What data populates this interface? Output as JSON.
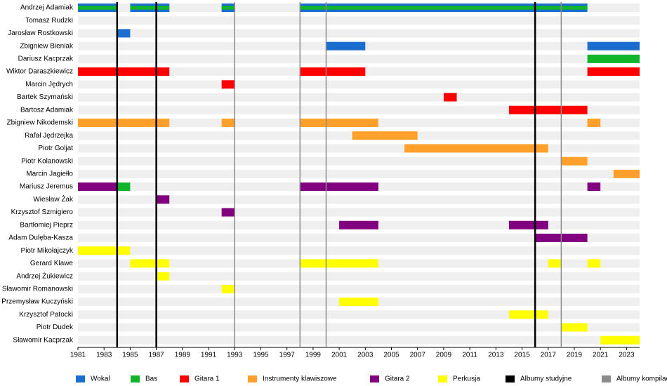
{
  "chart_data": {
    "type": "timeline",
    "categories": [
      "Andrzej Adamiak",
      "Tomasz Rudzki",
      "Jarosław Rostkowski",
      "Zbigniew Bieniak",
      "Dariusz Kacprzak",
      "Wiktor Daraszkiewicz",
      "Marcin Jędrych",
      "Bartek Szymański",
      "Bartosz Adamiak",
      "Zbigniew Nikodemski",
      "Rafał Jędrzejka",
      "Piotr Goljat",
      "Piotr Kolanowski",
      "Marcin Jagiełło",
      "Mariusz Jeremus",
      "Wiesław Żak",
      "Krzysztof Szmigiero",
      "Bartłomiej Pieprz",
      "Adam Dulęba-Kasza",
      "Piotr Mikołajczyk",
      "Gerard Klawe",
      "Andrzej Żukiewicz",
      "Sławomir Romanowski",
      "Przemysław Kuczyński",
      "Krzysztof Patocki",
      "Piotr Dudek",
      "Sławomir Kacprzak"
    ],
    "xlim": [
      1981,
      2024
    ],
    "xticks": [
      1981,
      1983,
      1985,
      1987,
      1989,
      1991,
      1993,
      1995,
      1997,
      1999,
      2001,
      2003,
      2005,
      2007,
      2009,
      2011,
      2013,
      2015,
      2017,
      2019,
      2021,
      2023
    ],
    "series": [
      {
        "name": "Wokal",
        "color": "#1a6ecf",
        "rows": [
          "Andrzej Adamiak",
          "Andrzej Adamiak",
          "Andrzej Adamiak",
          "Andrzej Adamiak",
          "Jarosław Rostkowski",
          "Zbigniew Bieniak",
          "Zbigniew Bieniak"
        ],
        "start": [
          1981,
          1985,
          1992,
          1998,
          1984,
          2000,
          2020
        ],
        "end": [
          1984,
          1988,
          1993,
          2020,
          1985,
          2003,
          2024
        ]
      },
      {
        "name": "Bas",
        "color": "#11b52a",
        "rows": [
          "Andrzej Adamiak",
          "Andrzej Adamiak",
          "Andrzej Adamiak",
          "Andrzej Adamiak",
          "Dariusz Kacprzak",
          "Mariusz Jeremus"
        ],
        "start": [
          1981,
          1985,
          1992,
          1998,
          2020,
          1984
        ],
        "end": [
          1984,
          1988,
          1993,
          2020,
          2024,
          1985
        ]
      },
      {
        "name": "Gitara 1",
        "color": "#ff0000",
        "rows": [
          "Wiktor Daraszkiewicz",
          "Wiktor Daraszkiewicz",
          "Wiktor Daraszkiewicz",
          "Marcin Jędrych",
          "Bartek Szymański",
          "Bartosz Adamiak"
        ],
        "start": [
          1981,
          1998,
          2020,
          1992,
          2009,
          2014
        ],
        "end": [
          1988,
          2003,
          2024,
          1993,
          2010,
          2020
        ]
      },
      {
        "name": "Instrumenty klawiszowe",
        "color": "#ffa02a",
        "rows": [
          "Zbigniew Nikodemski",
          "Zbigniew Nikodemski",
          "Zbigniew Nikodemski",
          "Zbigniew Nikodemski",
          "Rafał Jędrzejka",
          "Piotr Goljat",
          "Piotr Kolanowski",
          "Marcin Jagiełło"
        ],
        "start": [
          1981,
          1992,
          1998,
          2020,
          2002,
          2006,
          2018,
          2022
        ],
        "end": [
          1988,
          1993,
          2004,
          2021,
          2007,
          2017,
          2020,
          2024
        ]
      },
      {
        "name": "Gitara 2",
        "color": "#800080",
        "rows": [
          "Mariusz Jeremus",
          "Mariusz Jeremus",
          "Mariusz Jeremus",
          "Wiesław Żak",
          "Krzysztof Szmigiero",
          "Bartłomiej Pieprz",
          "Bartłomiej Pieprz",
          "Adam Dulęba-Kasza"
        ],
        "start": [
          1981,
          1998,
          2020,
          1987,
          1992,
          2001,
          2014,
          2016
        ],
        "end": [
          1984,
          2004,
          2021,
          1988,
          1993,
          2004,
          2017,
          2020
        ]
      },
      {
        "name": "Perkusja",
        "color": "#ffff00",
        "rows": [
          "Piotr Mikołajczyk",
          "Gerard Klawe",
          "Gerard Klawe",
          "Gerard Klawe",
          "Gerard Klawe",
          "Andrzej Żukiewicz",
          "Sławomir Romanowski",
          "Przemysław Kuczyński",
          "Krzysztof Patocki",
          "Piotr Dudek",
          "Sławomir Kacprzak"
        ],
        "start": [
          1981,
          1985,
          1998,
          2017,
          2020,
          1987,
          1992,
          2001,
          2014,
          2018,
          2021
        ],
        "end": [
          1985,
          1988,
          2004,
          2018,
          2021,
          1988,
          1993,
          2004,
          2017,
          2020,
          2024
        ]
      }
    ],
    "markers": [
      {
        "name": "Albumy studyjne",
        "color": "#000000",
        "x": [
          1984,
          1987,
          2016
        ]
      },
      {
        "name": "Albumy kompilacyjne",
        "color": "#8c8c8c",
        "x": [
          1993,
          1998,
          2000,
          2018
        ]
      }
    ]
  }
}
